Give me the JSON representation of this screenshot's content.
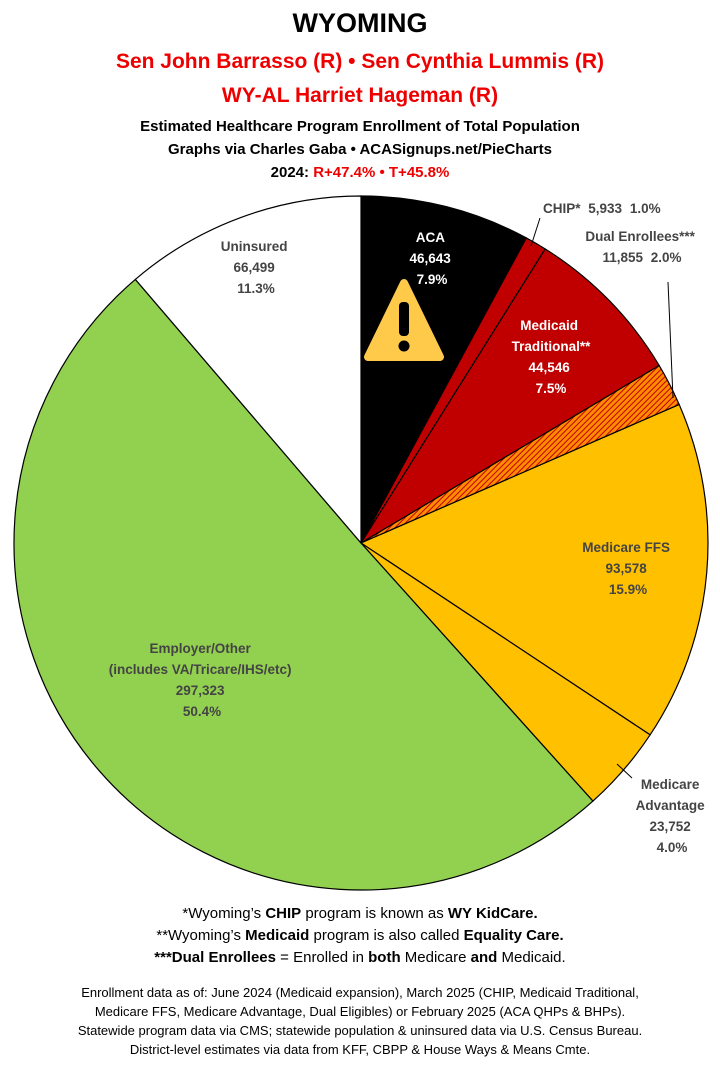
{
  "header": {
    "title": "WYOMING",
    "senators": "Sen John Barrasso (R) • Sen Cynthia Lummis (R)",
    "representative": "WY-AL Harriet Hageman (R)",
    "subtitle": "Estimated Healthcare Program Enrollment of Total Population",
    "credit": "Graphs via Charles Gaba  •  ACASignups.net/PieCharts",
    "election_year": "2024:",
    "election_margins": "R+47.4%  •  T+45.8%"
  },
  "chart_data": {
    "type": "pie",
    "start": "top, clockwise",
    "slices": [
      {
        "name": "ACA",
        "value": 46643,
        "percent": "7.9%",
        "color": "#000000",
        "label_color": "#ffffff"
      },
      {
        "name": "CHIP*",
        "value": 5933,
        "percent": "1.0%",
        "color": "#c00000",
        "label_color": "#444444"
      },
      {
        "name": "Medicaid Traditional**",
        "value": 44546,
        "percent": "7.5%",
        "color": "#c00000",
        "label_color": "#ffffff"
      },
      {
        "name": "Dual Enrollees***",
        "value": 11855,
        "percent": "2.0%",
        "color": "#ff8c00",
        "hatch": "#c00000",
        "label_color": "#444444"
      },
      {
        "name": "Medicare FFS",
        "value": 93578,
        "percent": "15.9%",
        "color": "#ffc000",
        "label_color": "#444444"
      },
      {
        "name": "Medicare Advantage",
        "value": 23752,
        "percent": "4.0%",
        "color": "#ffc000",
        "label_color": "#444444"
      },
      {
        "name": "Employer/Other",
        "name2": "(includes VA/Tricare/IHS/etc)",
        "value": 297323,
        "percent": "50.4%",
        "color": "#92d050",
        "label_color": "#444444"
      },
      {
        "name": "Uninsured",
        "value": 66499,
        "percent": "11.3%",
        "color": "#ffffff",
        "label_color": "#444444"
      }
    ],
    "value_labels": [
      "46,643",
      "5,933",
      "44,546",
      "11,855",
      "93,578",
      "23,752",
      "297,323",
      "66,499"
    ],
    "warning_icon": "warning-triangle-icon"
  },
  "notes": {
    "n1": [
      "*Wyoming’s ",
      "CHIP",
      " program is known as ",
      "WY KidCare."
    ],
    "n2": [
      "**Wyoming’s ",
      "Medicaid",
      " program is also called ",
      "Equality Care."
    ],
    "n3": [
      "***Dual Enrollees",
      " = Enrolled in ",
      "both",
      " Medicare ",
      "and",
      " Medicaid."
    ]
  },
  "sources": [
    "Enrollment data as of: June 2024 (Medicaid expansion), March 2025 (CHIP, Medicaid Traditional,",
    "Medicare FFS, Medicare Advantage, Dual Eligibles) or February 2025 (ACA QHPs & BHPs).",
    "Statewide program data via CMS; statewide population & uninsured data via U.S. Census Bureau.",
    "District-level estimates via data from KFF, CBPP & House Ways & Means Cmte."
  ]
}
